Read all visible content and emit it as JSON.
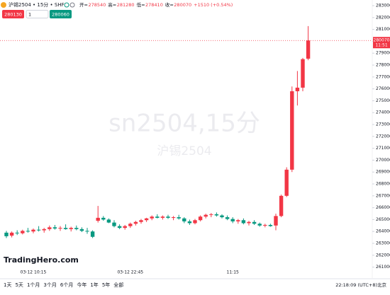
{
  "header": {
    "symbol": "沪锡2504 • 15分 • SHF",
    "ohlc_labels": [
      "开=",
      "高=",
      "低=",
      "收="
    ],
    "change": "+1510 (+0.54%)",
    "bid": 280130,
    "qty": 1,
    "ask": 280060
  },
  "chart_data": {
    "type": "candlestick",
    "watermark": "sn2504,15分",
    "watermark_sub": "沪锡2504",
    "categories": [
      null,
      null,
      null,
      null,
      null,
      "03-12 10:15",
      null,
      null,
      null,
      null,
      null,
      null,
      null,
      null,
      null,
      null,
      null,
      null,
      null,
      null,
      null,
      null,
      null,
      "03-12 22:45",
      null,
      null,
      null,
      null,
      null,
      null,
      null,
      null,
      null,
      null,
      null,
      null,
      null,
      null,
      null,
      null,
      null,
      null,
      "11:15",
      null,
      null,
      null,
      null,
      null,
      null,
      null,
      null,
      null,
      null,
      null,
      null,
      null,
      null
    ],
    "ohlc": [
      [
        263900,
        264050,
        263450,
        263600
      ],
      [
        263650,
        264000,
        263500,
        263900
      ],
      [
        263900,
        264100,
        263700,
        263850
      ],
      [
        263850,
        264150,
        263750,
        264050
      ],
      [
        264050,
        264300,
        263900,
        264000
      ],
      [
        264000,
        264250,
        263850,
        264150
      ],
      [
        264150,
        264450,
        264000,
        264100
      ],
      [
        264100,
        264300,
        263900,
        264200
      ],
      [
        264200,
        264500,
        264050,
        264350
      ],
      [
        264350,
        264550,
        264150,
        264250
      ],
      [
        264250,
        264450,
        264050,
        264300
      ],
      [
        264300,
        264600,
        264150,
        264200
      ],
      [
        264200,
        264400,
        264000,
        264300
      ],
      [
        264300,
        264500,
        264100,
        264200
      ],
      [
        264200,
        264350,
        263950,
        264050
      ],
      [
        264050,
        264300,
        263800,
        264000
      ],
      [
        264000,
        264100,
        263450,
        263550
      ],
      [
        264900,
        266150,
        264750,
        265150
      ],
      [
        265150,
        265300,
        264900,
        265000
      ],
      [
        265000,
        265100,
        264700,
        264750
      ],
      [
        264750,
        264950,
        264350,
        264450
      ],
      [
        264450,
        264600,
        264200,
        264300
      ],
      [
        264300,
        264550,
        264150,
        264450
      ],
      [
        264450,
        264750,
        264300,
        264650
      ],
      [
        264650,
        264900,
        264500,
        264800
      ],
      [
        264800,
        265050,
        264650,
        264950
      ],
      [
        264950,
        265150,
        264800,
        265100
      ],
      [
        265100,
        265350,
        264950,
        265250
      ],
      [
        265250,
        265450,
        265100,
        265150
      ],
      [
        265150,
        265350,
        265000,
        265250
      ],
      [
        265250,
        265400,
        265050,
        265150
      ],
      [
        265150,
        265300,
        264950,
        265200
      ],
      [
        265200,
        265400,
        265000,
        265100
      ],
      [
        265100,
        265200,
        264700,
        264850
      ],
      [
        264850,
        265000,
        264550,
        264700
      ],
      [
        264700,
        265050,
        264600,
        264950
      ],
      [
        264950,
        265350,
        264850,
        265250
      ],
      [
        265250,
        265500,
        265100,
        265400
      ],
      [
        265400,
        265550,
        265200,
        265450
      ],
      [
        265450,
        265600,
        265250,
        265350
      ],
      [
        265350,
        265450,
        265100,
        265200
      ],
      [
        265200,
        265350,
        264950,
        265050
      ],
      [
        265050,
        265200,
        264700,
        264850
      ],
      [
        264850,
        265050,
        264650,
        264950
      ],
      [
        264950,
        265100,
        264600,
        264700
      ],
      [
        264700,
        264900,
        264500,
        264800
      ],
      [
        264800,
        264950,
        264550,
        264650
      ],
      [
        264650,
        264750,
        264400,
        264500
      ],
      [
        264500,
        264650,
        264350,
        264550
      ],
      [
        264550,
        264650,
        264400,
        264450
      ],
      [
        264500,
        265500,
        264100,
        265300
      ],
      [
        265300,
        267100,
        265200,
        267000
      ],
      [
        267000,
        269400,
        266900,
        269200
      ],
      [
        269200,
        276200,
        269000,
        275800
      ],
      [
        275800,
        277500,
        274600,
        276100
      ],
      [
        276100,
        278600,
        275800,
        278500
      ],
      [
        278540,
        281280,
        278410,
        280070
      ]
    ],
    "up_color": "#f23645",
    "down_color": "#089981",
    "ylim": [
      261000,
      283000
    ],
    "yticks": [
      261000,
      262000,
      263000,
      264000,
      265000,
      266000,
      267000,
      268000,
      269000,
      270000,
      271000,
      272000,
      273000,
      274000,
      275000,
      276000,
      277000,
      278000,
      279000,
      280000,
      281000,
      282000,
      283000
    ],
    "last_time": "11:51"
  },
  "footer": {
    "logo": "TradingHero.com",
    "ranges": [
      "1天",
      "5天",
      "1个月",
      "3个月",
      "6个月",
      "今年",
      "1年",
      "5年",
      "全部"
    ],
    "clock": "22:18:09 (UTC+8)北京"
  }
}
